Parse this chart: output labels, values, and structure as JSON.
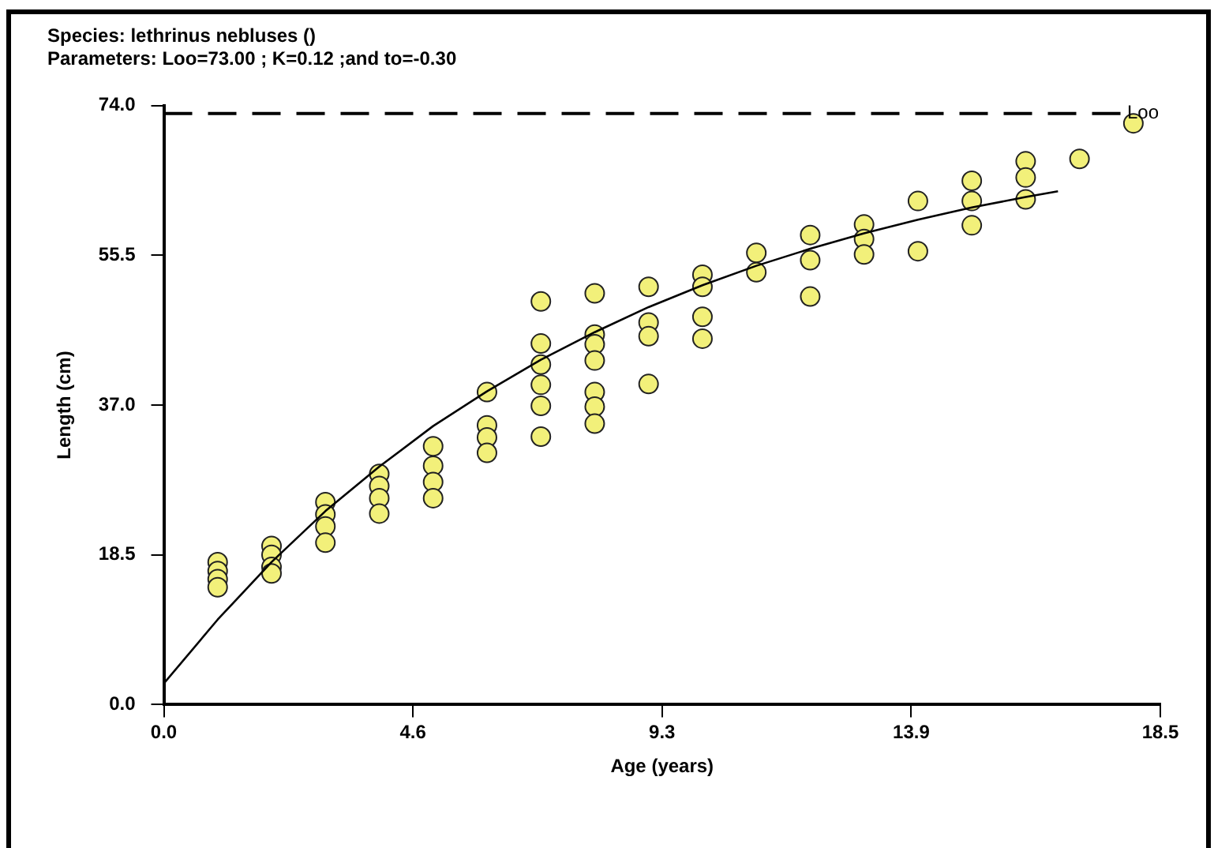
{
  "chart_data": {
    "type": "scatter",
    "title": "Species: lethrinus nebluses ()",
    "subtitle": "Parameters: Loo=73.00 ; K=0.12 ;and to=-0.30",
    "xlabel": "Age (years)",
    "ylabel": "Length (cm)",
    "xlim": [
      0,
      18.5
    ],
    "xticks": [
      {
        "value": 0,
        "label": "0.0"
      },
      {
        "value": 4.625,
        "label": "4.6"
      },
      {
        "value": 9.25,
        "label": "9.3"
      },
      {
        "value": 13.875,
        "label": "13.9"
      },
      {
        "value": 18.5,
        "label": "18.5"
      }
    ],
    "ylim": [
      0,
      74
    ],
    "yticks": [
      {
        "value": 0,
        "label": "0.0"
      },
      18.5,
      {
        "value": 37,
        "label": "37.0"
      },
      55.5,
      {
        "value": 74,
        "label": "74.0"
      }
    ],
    "grid": false,
    "legend": false,
    "marker": "circle",
    "ref_lines": [
      {
        "axis": "y",
        "value": 73,
        "label": "Loo",
        "color": "#000000",
        "line_style": "dashed"
      }
    ],
    "series": [
      {
        "color": "#f2f07a",
        "x": [
          1,
          1,
          1,
          1,
          2,
          2,
          2,
          2,
          3,
          3,
          3,
          3,
          4,
          4,
          4,
          4,
          5,
          5,
          5,
          5,
          6,
          6,
          6,
          6,
          7,
          7,
          7,
          7,
          7,
          7,
          8,
          8,
          8,
          8,
          8,
          8,
          8,
          9,
          9,
          9,
          9,
          10,
          10,
          10,
          10,
          11,
          11,
          12,
          12,
          12,
          13,
          13,
          13,
          14,
          14,
          15,
          15,
          15,
          16,
          16,
          16,
          17,
          18
        ],
        "values": [
          17.6,
          16.5,
          15.5,
          14.5,
          19.6,
          18.5,
          17,
          16.2,
          25,
          23.5,
          22,
          20,
          28.5,
          27,
          25.5,
          23.6,
          31.9,
          29.5,
          27.5,
          25.5,
          38.6,
          34.5,
          33,
          31.1,
          49.8,
          44.6,
          42,
          39.5,
          36.9,
          33.1,
          50.8,
          45.7,
          44.5,
          42.5,
          38.6,
          36.8,
          34.7,
          51.6,
          47.2,
          45.5,
          39.6,
          53.1,
          51.6,
          47.9,
          45.2,
          55.8,
          53.4,
          58,
          54.9,
          50.4,
          59.3,
          57.5,
          55.6,
          62.2,
          56,
          64.7,
          62.2,
          59.2,
          67.1,
          65.1,
          62.4,
          67.4,
          71.8
        ]
      },
      {
        "type": "line",
        "color": "#000000",
        "marker": "none",
        "line_style": "solid",
        "x": [
          0,
          1,
          2,
          3,
          4,
          5,
          6,
          7,
          8,
          9,
          10,
          11,
          12,
          13,
          14,
          15,
          16,
          16.6
        ],
        "values": [
          2.6,
          10.5,
          17.6,
          23.9,
          29.4,
          34.4,
          38.7,
          42.6,
          46,
          49.1,
          51.8,
          54.2,
          56.3,
          58.2,
          59.9,
          61.4,
          62.7,
          63.4
        ]
      }
    ]
  }
}
